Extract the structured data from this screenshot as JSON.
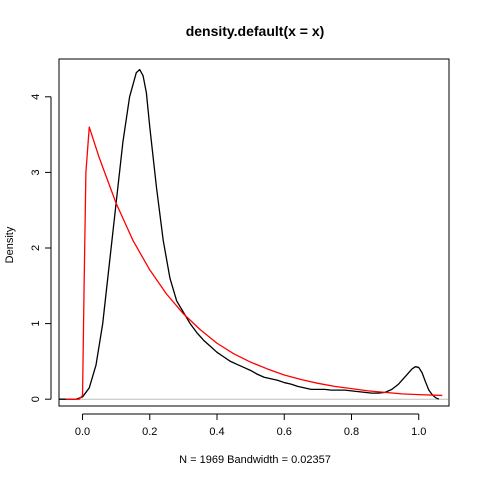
{
  "chart_data": {
    "type": "line",
    "title": "density.default(x = x)",
    "xlabel": "N = 1969   Bandwidth = 0.02357",
    "ylabel": "Density",
    "xlim": [
      -0.07,
      1.09
    ],
    "ylim": [
      -0.09,
      4.5
    ],
    "x_ticks": [
      0.0,
      0.2,
      0.4,
      0.6,
      0.8,
      1.0
    ],
    "x_tick_labels": [
      "0.0",
      "0.2",
      "0.4",
      "0.6",
      "0.8",
      "1.0"
    ],
    "y_ticks": [
      0,
      1,
      2,
      3,
      4
    ],
    "y_tick_labels": [
      "0",
      "1",
      "2",
      "3",
      "4"
    ],
    "grid": false,
    "baseline": {
      "y": 0,
      "color": "#bebebe"
    },
    "series": [
      {
        "color": "#000000",
        "x": [
          -0.07,
          -0.02,
          0.0,
          0.02,
          0.04,
          0.06,
          0.08,
          0.1,
          0.12,
          0.14,
          0.16,
          0.17,
          0.18,
          0.19,
          0.2,
          0.22,
          0.24,
          0.26,
          0.28,
          0.3,
          0.32,
          0.34,
          0.36,
          0.38,
          0.4,
          0.42,
          0.44,
          0.46,
          0.48,
          0.5,
          0.52,
          0.54,
          0.56,
          0.58,
          0.6,
          0.62,
          0.64,
          0.66,
          0.68,
          0.7,
          0.72,
          0.74,
          0.76,
          0.78,
          0.8,
          0.82,
          0.84,
          0.86,
          0.88,
          0.9,
          0.92,
          0.94,
          0.96,
          0.98,
          0.99,
          1.0,
          1.01,
          1.02,
          1.03,
          1.04,
          1.05,
          1.06
        ],
        "y": [
          0.0,
          0.0,
          0.03,
          0.15,
          0.45,
          1.0,
          1.8,
          2.6,
          3.4,
          4.0,
          4.32,
          4.36,
          4.28,
          4.05,
          3.6,
          2.8,
          2.1,
          1.6,
          1.3,
          1.15,
          1.0,
          0.88,
          0.78,
          0.7,
          0.62,
          0.56,
          0.5,
          0.46,
          0.42,
          0.38,
          0.33,
          0.29,
          0.27,
          0.25,
          0.22,
          0.2,
          0.17,
          0.15,
          0.13,
          0.13,
          0.13,
          0.12,
          0.12,
          0.12,
          0.11,
          0.1,
          0.09,
          0.08,
          0.08,
          0.09,
          0.13,
          0.2,
          0.3,
          0.4,
          0.43,
          0.42,
          0.35,
          0.23,
          0.12,
          0.06,
          0.02,
          0.0
        ]
      },
      {
        "color": "#ff0000",
        "x": [
          -0.05,
          -0.01,
          0.0,
          0.005,
          0.01,
          0.02,
          0.05,
          0.1,
          0.15,
          0.2,
          0.25,
          0.3,
          0.35,
          0.4,
          0.45,
          0.5,
          0.55,
          0.6,
          0.65,
          0.7,
          0.75,
          0.8,
          0.85,
          0.9,
          0.95,
          1.0,
          1.07
        ],
        "y": [
          0.0,
          0.0,
          0.05,
          1.6,
          3.0,
          3.6,
          3.19,
          2.59,
          2.1,
          1.71,
          1.39,
          1.13,
          0.92,
          0.74,
          0.6,
          0.49,
          0.4,
          0.32,
          0.26,
          0.21,
          0.17,
          0.14,
          0.11,
          0.09,
          0.07,
          0.06,
          0.05
        ]
      }
    ]
  }
}
